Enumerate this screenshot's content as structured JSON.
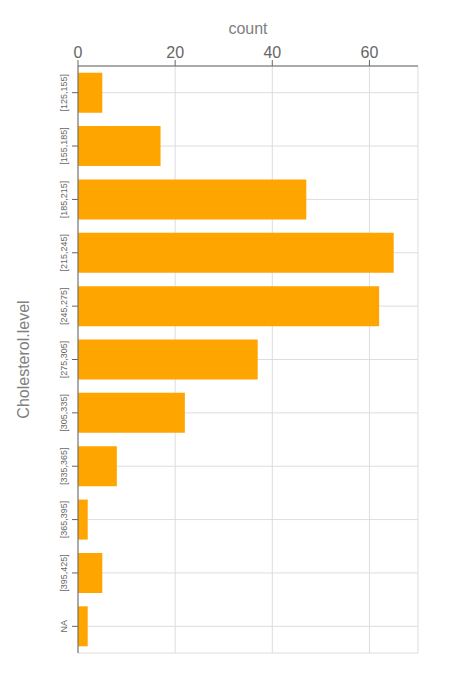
{
  "chart_data": {
    "type": "bar",
    "orientation": "horizontal",
    "categories": [
      "[125,155]",
      "[155,185]",
      "[185,215]",
      "[215,245]",
      "[245,275]",
      "[275,305]",
      "[305,335]",
      "[335,365]",
      "[365,395]",
      "[395,425]",
      "NA"
    ],
    "values": [
      5,
      17,
      47,
      65,
      62,
      37,
      22,
      8,
      2,
      5,
      2
    ],
    "color": "#FFA500",
    "xlabel": "count",
    "ylabel": "Cholesterol.level",
    "xlim": [
      0,
      70
    ],
    "xticks": [
      0,
      20,
      40,
      60
    ],
    "grid": true
  }
}
